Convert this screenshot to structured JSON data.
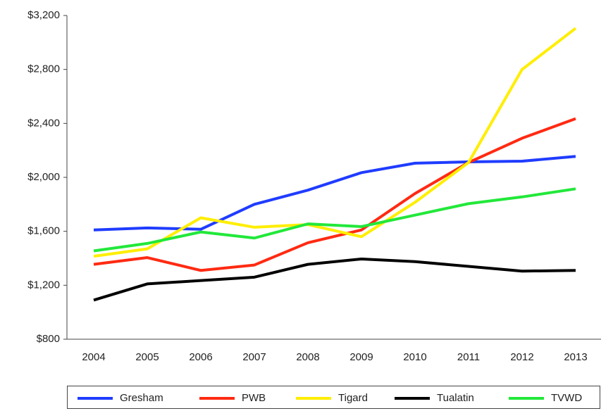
{
  "chart_data": {
    "type": "line",
    "categories": [
      "2004",
      "2005",
      "2006",
      "2007",
      "2008",
      "2009",
      "2010",
      "2011",
      "2012",
      "2013"
    ],
    "series": [
      {
        "name": "Gresham",
        "color": "#1f3cff",
        "values": [
          1610,
          1625,
          1615,
          1800,
          1905,
          2035,
          2105,
          2115,
          2120,
          2155
        ]
      },
      {
        "name": "PWB",
        "color": "#ff2a12",
        "values": [
          1355,
          1405,
          1310,
          1350,
          1515,
          1610,
          1880,
          2110,
          2290,
          2435
        ]
      },
      {
        "name": "Tigard",
        "color": "#ffee00",
        "values": [
          1415,
          1470,
          1700,
          1630,
          1650,
          1560,
          1815,
          2110,
          2800,
          3105
        ]
      },
      {
        "name": "Tualatin",
        "color": "#000000",
        "values": [
          1090,
          1210,
          1235,
          1260,
          1355,
          1395,
          1375,
          1340,
          1305,
          1310
        ]
      },
      {
        "name": "TVWD",
        "color": "#22e83a",
        "values": [
          1455,
          1510,
          1595,
          1550,
          1655,
          1635,
          1720,
          1805,
          1855,
          1915
        ]
      }
    ],
    "ylim": [
      800,
      3200
    ],
    "yticks": [
      {
        "value": 800,
        "label": "$800"
      },
      {
        "value": 1200,
        "label": "$1,200"
      },
      {
        "value": 1600,
        "label": "$1,600"
      },
      {
        "value": 2000,
        "label": "$2,000"
      },
      {
        "value": 2400,
        "label": "$2,400"
      },
      {
        "value": 2800,
        "label": "$2,800"
      },
      {
        "value": 3200,
        "label": "$3,200"
      }
    ],
    "legend": "bottom"
  }
}
